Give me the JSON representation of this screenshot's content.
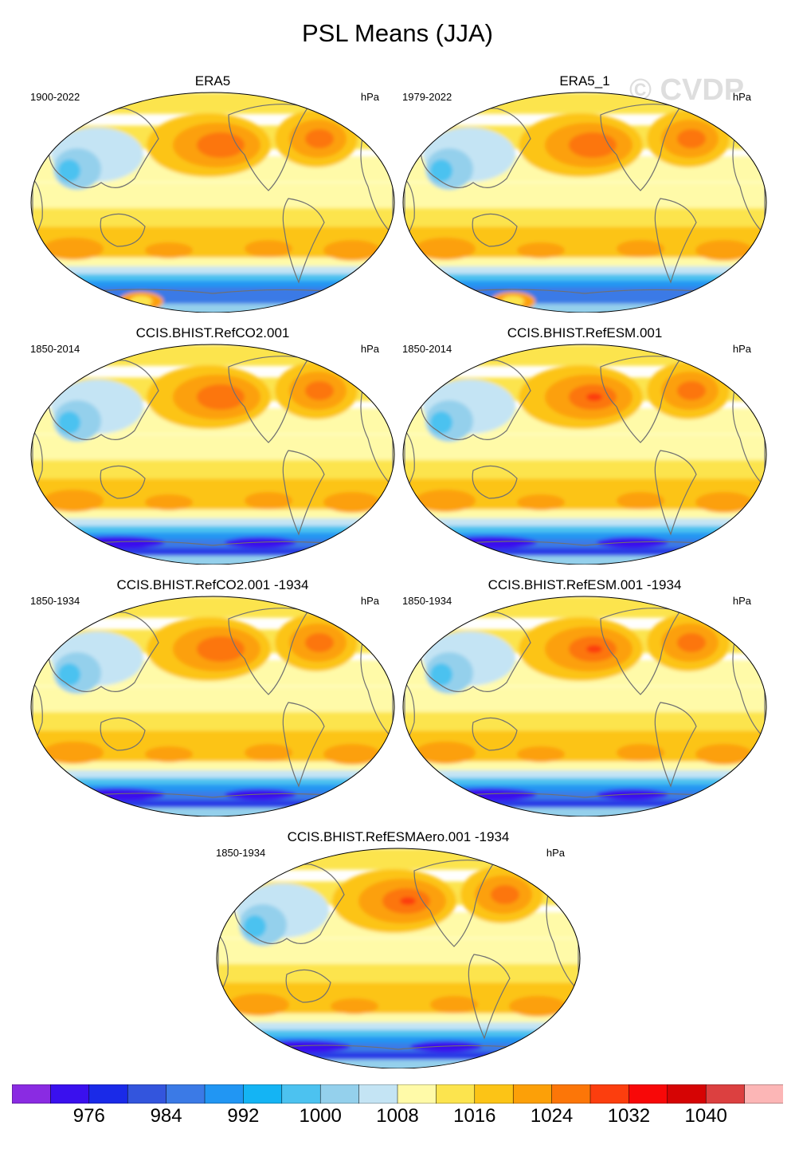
{
  "title": "PSL Means (JJA)",
  "watermark": "© CVDP",
  "units": "hPa",
  "chart_data": [
    {
      "type": "heatmap",
      "title": "ERA5",
      "period": "1900-2022",
      "units": "hPa",
      "variant": "era5"
    },
    {
      "type": "heatmap",
      "title": "ERA5_1",
      "period": "1979-2022",
      "units": "hPa",
      "variant": "era5b"
    },
    {
      "type": "heatmap",
      "title": "CCIS.BHIST.RefCO2.001",
      "period": "1850-2014",
      "units": "hPa",
      "variant": "model"
    },
    {
      "type": "heatmap",
      "title": "CCIS.BHIST.RefESM.001",
      "period": "1850-2014",
      "units": "hPa",
      "variant": "model-strong"
    },
    {
      "type": "heatmap",
      "title": "CCIS.BHIST.RefCO2.001 -1934",
      "period": "1850-1934",
      "units": "hPa",
      "variant": "model"
    },
    {
      "type": "heatmap",
      "title": "CCIS.BHIST.RefESM.001 -1934",
      "period": "1850-1934",
      "units": "hPa",
      "variant": "model-strong"
    },
    {
      "type": "heatmap",
      "title": "CCIS.BHIST.RefESMAero.001 -1934",
      "period": "1850-1934",
      "units": "hPa",
      "variant": "model-strong"
    }
  ],
  "colorbar": {
    "colors": [
      "#8a2be2",
      "#3a10ee",
      "#1a2ae8",
      "#3355dd",
      "#3b7ae6",
      "#2196f3",
      "#14b4f4",
      "#4cc2f0",
      "#94d0ec",
      "#c4e4f4",
      "#fffaa8",
      "#fce44e",
      "#fcc416",
      "#fca008",
      "#fc7608",
      "#fc3e0e",
      "#f80808",
      "#d60404",
      "#dc4040",
      "#fcb6b6"
    ],
    "labels": [
      "976",
      "984",
      "992",
      "1000",
      "1008",
      "1016",
      "1024",
      "1032",
      "1040"
    ]
  }
}
